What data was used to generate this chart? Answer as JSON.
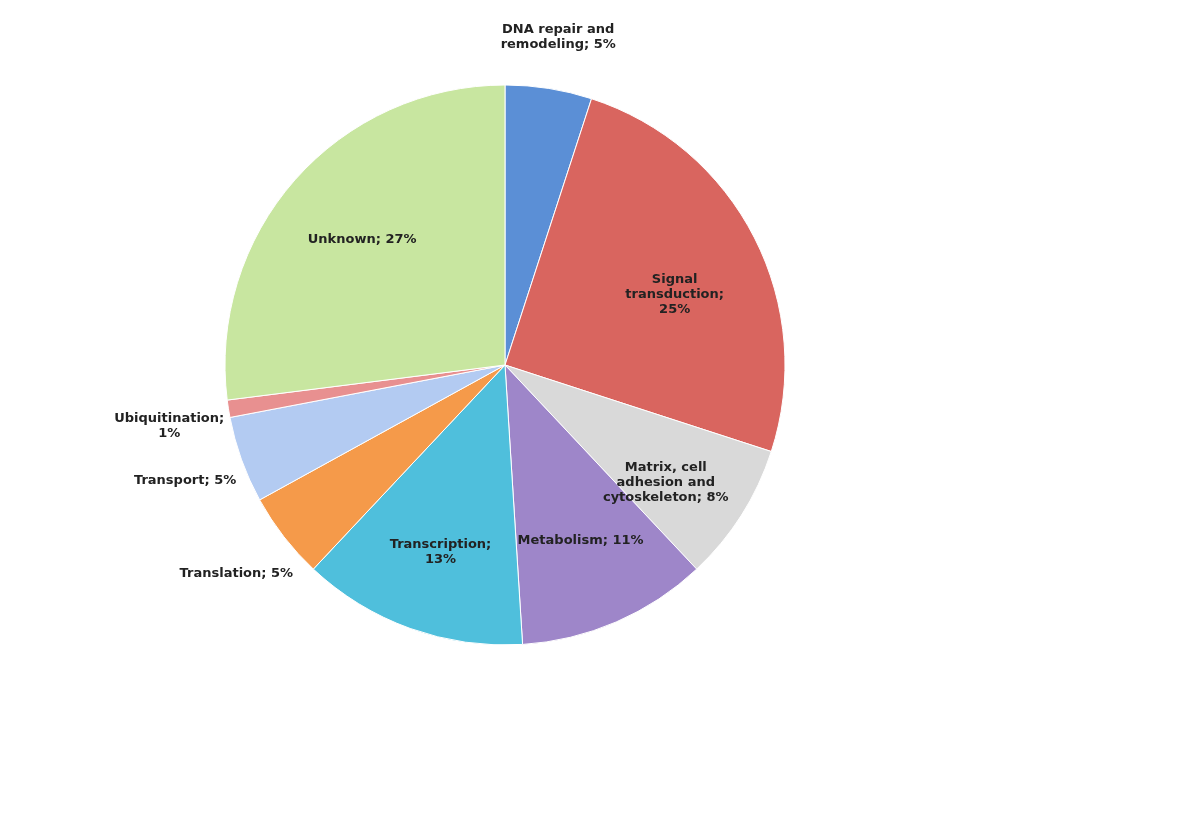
{
  "chart_data": {
    "type": "pie",
    "categories": [
      "DNA repair and remodeling; 5%",
      "Signal transduction; 25%",
      "Matrix, cell adhesion and cytoskeleton; 8%",
      "Metabolism; 11%",
      "Transcription; 13%",
      "Translation; 5%",
      "Transport; 5%",
      "Ubiquitination; 1%",
      "Unknown; 27%"
    ],
    "values": [
      5,
      25,
      8,
      11,
      13,
      5,
      5,
      1,
      27
    ],
    "colors": [
      "#5b8fd6",
      "#d9655f",
      "#d9d9d9",
      "#9e86c9",
      "#4fbfdc",
      "#f59a4a",
      "#b3cbf2",
      "#e89090",
      "#c8e6a0"
    ],
    "legend": false
  }
}
